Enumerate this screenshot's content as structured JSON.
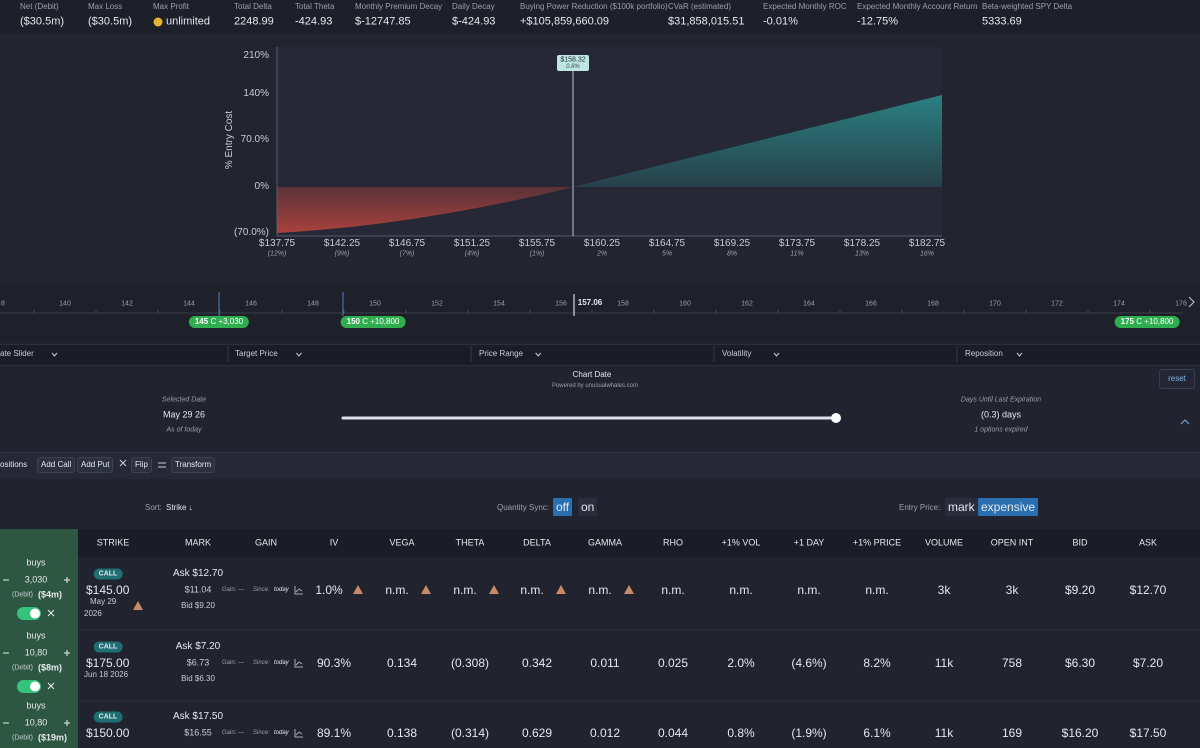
{
  "stats": [
    {
      "label": "Net (Debit)",
      "value": "($30.5m)"
    },
    {
      "label": "Max Loss",
      "value": "($30.5m)"
    },
    {
      "label": "Max Profit",
      "value": "unlimited"
    },
    {
      "label": "Total Delta",
      "value": "2248.99"
    },
    {
      "label": "Total Theta",
      "value": "-424.93"
    },
    {
      "label": "Monthly Premium Decay",
      "value": "$-12747.85"
    },
    {
      "label": "Daily Decay",
      "value": "$-424.93"
    },
    {
      "label": "Buying Power Reduction ($100k portfolio)",
      "value": "+$105,859,660.09"
    },
    {
      "label": "CVaR (estimated)",
      "value": "$31,858,015.51"
    },
    {
      "label": "Expected Monthly ROC",
      "value": "-0.01%"
    },
    {
      "label": "Expected Monthly Account Return",
      "value": "-12.75%"
    },
    {
      "label": "Beta-weighted SPY Delta",
      "value": "5333.69"
    }
  ],
  "chart": {
    "y_axis_label": "% Entry Cost",
    "yticks": [
      "210%",
      "140%",
      "70.0%",
      "0%",
      "(70.0%)"
    ],
    "xticks": [
      {
        "price": "$137.75",
        "pct": "(12%)"
      },
      {
        "price": "$142.25",
        "pct": "(9%)"
      },
      {
        "price": "$146.75",
        "pct": "(7%)"
      },
      {
        "price": "$151.25",
        "pct": "(4%)"
      },
      {
        "price": "$155.75",
        "pct": "(1%)"
      },
      {
        "price": "$160.25",
        "pct": "2%"
      },
      {
        "price": "$164.75",
        "pct": "5%"
      },
      {
        "price": "$169.25",
        "pct": "8%"
      },
      {
        "price": "$173.75",
        "pct": "11%"
      },
      {
        "price": "$178.25",
        "pct": "13%"
      },
      {
        "price": "$182.75",
        "pct": "16%"
      }
    ],
    "tooltip": {
      "price": "$158.32",
      "pct": "0.8%"
    }
  },
  "price_slider": {
    "ticks": [
      "8",
      "140",
      "142",
      "144",
      "146",
      "148",
      "150",
      "152",
      "154",
      "156",
      "158",
      "160",
      "162",
      "164",
      "166",
      "168",
      "170",
      "172",
      "174",
      "176"
    ],
    "current": "157.06",
    "legs": [
      {
        "strike": "145",
        "detail": "C +3,030"
      },
      {
        "strike": "150",
        "detail": "C +10,800"
      },
      {
        "strike": "175",
        "detail": "C +10,800"
      }
    ]
  },
  "tabs": [
    "ate Slider",
    "Target Price",
    "Price Range",
    "Volatility",
    "Reposition"
  ],
  "chart_date": {
    "title": "Chart Date",
    "powered_by": "Powered by unusualwhales.com",
    "reset": "reset",
    "selected_label": "Selected Date",
    "selected_date": "May 29 26",
    "as_of": "As of today",
    "days_label": "Days Until Last Expiration",
    "days_value": "(0.3) days",
    "expired": "1 options expired"
  },
  "toolbar": {
    "title": "ositions",
    "buttons": [
      "Add Call",
      "Add Put",
      "Flip",
      "Transform"
    ]
  },
  "controls": {
    "sort_label": "Sort:",
    "sort_value": "Strike ↓",
    "sync_label": "Quantity Sync:",
    "sync_off": "off",
    "sync_on": "on",
    "entry_label": "Entry Price:",
    "entry_mark": "mark",
    "entry_expensive": "expensive"
  },
  "table": {
    "columns": [
      "STRIKE",
      "MARK",
      "GAIN",
      "IV",
      "VEGA",
      "THETA",
      "DELTA",
      "GAMMA",
      "RHO",
      "+1% VOL",
      "+1 DAY",
      "+1% PRICE",
      "VOLUME",
      "OPEN INT",
      "BID",
      "ASK"
    ],
    "rows": [
      {
        "side": "buys",
        "qty": "3,030",
        "debit": "(Debit)",
        "amount": "($4m)",
        "type": "CALL",
        "strike": "$145.00",
        "expiry": [
          "May 29",
          "2026"
        ],
        "ask": "Ask $12.70",
        "mark": "$11.04",
        "bid": "Bid $9.20",
        "gain": "Gain: —",
        "since": "Since:",
        "since_value": "today",
        "cells": [
          "1.0%",
          "n.m.",
          "n.m.",
          "n.m.",
          "n.m.",
          "n.m.",
          "n.m.",
          "n.m.",
          "n.m.",
          "3k",
          "3k",
          "$9.20",
          "$12.70"
        ]
      },
      {
        "side": "buys",
        "qty": "10,80",
        "debit": "(Debit)",
        "amount": "($8m)",
        "type": "CALL",
        "strike": "$175.00",
        "expiry": [
          "Jun 18 2026"
        ],
        "ask": "Ask $7.20",
        "mark": "$6.73",
        "bid": "Bid $6.30",
        "gain": "Gain: —",
        "since": "Since:",
        "since_value": "today",
        "cells": [
          "90.3%",
          "0.134",
          "(0.308)",
          "0.342",
          "0.011",
          "0.025",
          "2.0%",
          "(4.6%)",
          "8.2%",
          "11k",
          "758",
          "$6.30",
          "$7.20"
        ]
      },
      {
        "side": "buys",
        "qty": "10,80",
        "debit": "(Debit)",
        "amount": "($19m)",
        "type": "CALL",
        "strike": "$150.00",
        "expiry": [],
        "ask": "Ask $17.50",
        "mark": "$16.55",
        "bid": "",
        "gain": "Gain: —",
        "since": "Since:",
        "since_value": "today",
        "cells": [
          "89.1%",
          "0.138",
          "(0.314)",
          "0.629",
          "0.012",
          "0.044",
          "0.8%",
          "(1.9%)",
          "6.1%",
          "11k",
          "169",
          "$16.20",
          "$17.50"
        ]
      }
    ]
  }
}
